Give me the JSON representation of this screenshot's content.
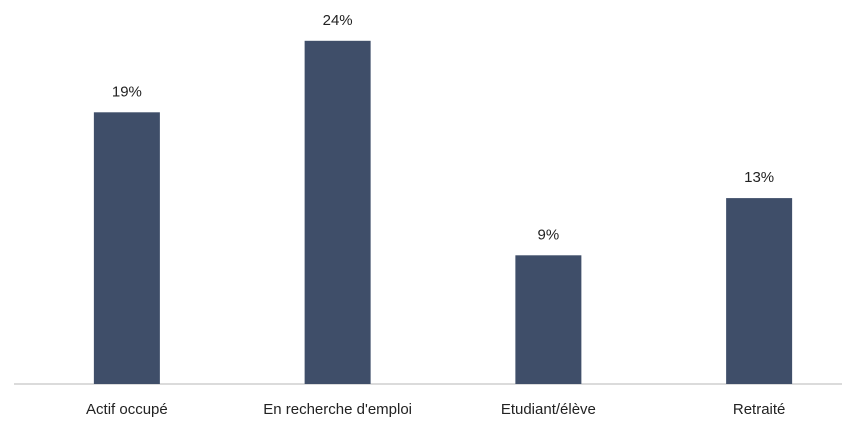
{
  "chart_data": {
    "type": "bar",
    "categories": [
      "Actif occupé",
      "En recherche d'emploi",
      "Etudiant/élève",
      "Retraité"
    ],
    "values": [
      19,
      24,
      9,
      13
    ],
    "value_labels": [
      "19%",
      "24%",
      "9%",
      "13%"
    ],
    "color": "#3f4e69"
  }
}
